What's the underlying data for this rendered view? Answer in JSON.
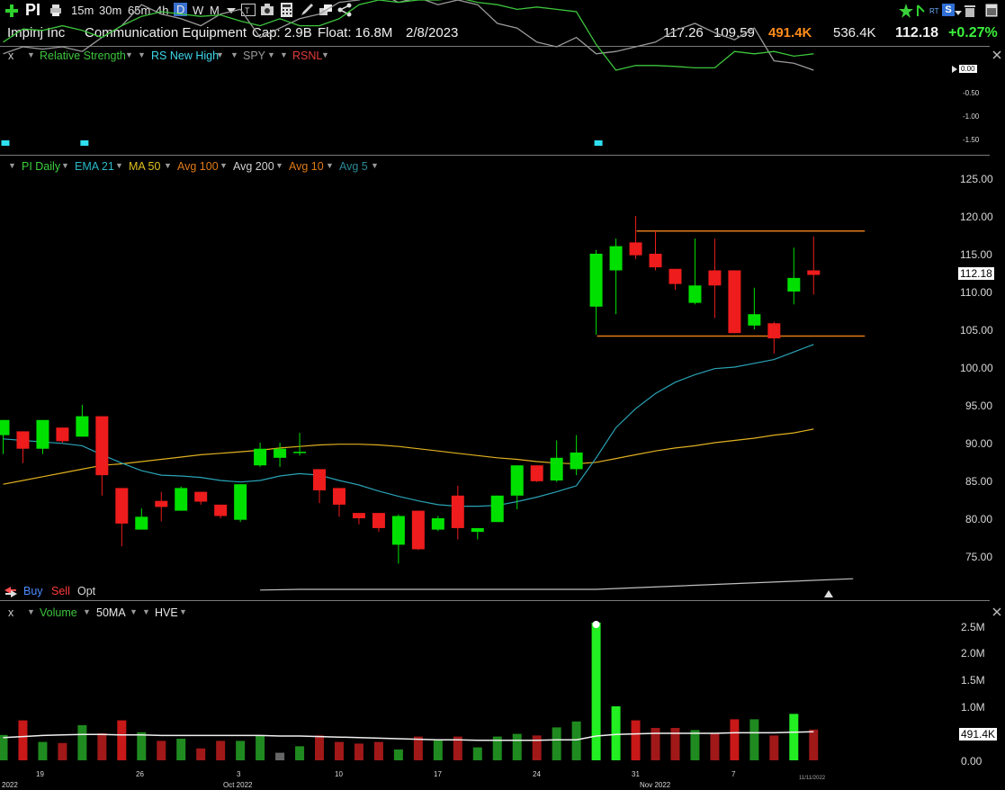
{
  "toolbar": {
    "symbol": "PI",
    "timeframes": [
      "15m",
      "30m",
      "65m",
      "4h",
      "D",
      "W",
      "M"
    ],
    "active_timeframe": "D"
  },
  "header": {
    "company": "Impinj Inc",
    "industry": "Communication Equipment",
    "cap": "Cap: 2.9B",
    "float": "Float: 16.8M",
    "date": "2/8/2023",
    "high": "117.26",
    "low": "109.59",
    "volume": "491.4K",
    "avg_volume": "536.4K",
    "last": "112.18",
    "change_pct": "+0.27%",
    "rt_badge": "RT",
    "s_badge": "S"
  },
  "rs_pane": {
    "close": "x",
    "items": [
      "Relative Strength",
      "RS New High",
      "SPY",
      "RSNL"
    ],
    "axis": [
      "0.00",
      "-0.50",
      "-1.00",
      "-1.50"
    ]
  },
  "price_pane": {
    "items": [
      "PI Daily",
      "EMA 21",
      "MA 50",
      "Avg 100",
      "Avg 200",
      "Avg 10",
      "Avg 5"
    ],
    "axis": [
      "125.00",
      "120.00",
      "115.00",
      "110.00",
      "105.00",
      "100.00",
      "95.00",
      "90.00",
      "85.00",
      "80.00",
      "75.00"
    ],
    "last_tag": "112.18",
    "buy": "Buy",
    "sell": "Sell",
    "opt": "Opt"
  },
  "volume_pane": {
    "close": "x",
    "items": [
      "Volume",
      "50MA",
      "HVE"
    ],
    "axis": [
      "2.5M",
      "2.0M",
      "1.5M",
      "1.0M",
      "0.00"
    ],
    "last_tag": "491.4K"
  },
  "dates": {
    "days": [
      "19",
      "26",
      "3",
      "10",
      "17",
      "24",
      "31",
      "7"
    ],
    "months": [
      "2022",
      "Oct 2022",
      "Nov 2022"
    ],
    "cursor_date": "11/11/2022"
  },
  "colors": {
    "up": "#00e000",
    "down": "#ee1c1c",
    "ema21": "#2aa3b6",
    "ma50": "#e0b020",
    "avg200": "#bfbfbf",
    "rs": "#3cc43c",
    "spy": "#9a9a9a",
    "orange_hl": "#e07a18",
    "change": "#3cf03c",
    "volume_hl": "#ff8c1a"
  },
  "chart_data": {
    "type": "candlestick",
    "ylim": [
      70,
      125
    ],
    "candles": [
      {
        "o": 91.0,
        "h": 93.0,
        "l": 88.5,
        "c": 93.0
      },
      {
        "o": 91.5,
        "h": 91.5,
        "l": 87.3,
        "c": 89.2
      },
      {
        "o": 89.2,
        "h": 93.0,
        "l": 88.5,
        "c": 93.0
      },
      {
        "o": 92.0,
        "h": 92.0,
        "l": 90.0,
        "c": 90.2
      },
      {
        "o": 90.8,
        "h": 95.0,
        "l": 90.8,
        "c": 93.5
      },
      {
        "o": 93.5,
        "h": 93.5,
        "l": 83.0,
        "c": 85.7
      },
      {
        "o": 84.0,
        "h": 84.0,
        "l": 76.3,
        "c": 79.3
      },
      {
        "o": 78.5,
        "h": 81.3,
        "l": 78.5,
        "c": 80.2
      },
      {
        "o": 82.3,
        "h": 83.5,
        "l": 79.6,
        "c": 81.5
      },
      {
        "o": 81.0,
        "h": 84.2,
        "l": 81.0,
        "c": 84.0
      },
      {
        "o": 83.5,
        "h": 83.5,
        "l": 81.8,
        "c": 82.2
      },
      {
        "o": 81.8,
        "h": 81.8,
        "l": 80.0,
        "c": 80.3
      },
      {
        "o": 79.8,
        "h": 84.5,
        "l": 79.5,
        "c": 84.5
      },
      {
        "o": 87.0,
        "h": 90.0,
        "l": 86.8,
        "c": 89.2
      },
      {
        "o": 88.0,
        "h": 90.0,
        "l": 86.8,
        "c": 89.2
      },
      {
        "o": 88.8,
        "h": 91.3,
        "l": 88.3,
        "c": 88.8
      },
      {
        "o": 86.5,
        "h": 86.5,
        "l": 82.0,
        "c": 83.7
      },
      {
        "o": 84.0,
        "h": 84.0,
        "l": 80.2,
        "c": 81.8
      },
      {
        "o": 80.7,
        "h": 80.7,
        "l": 79.2,
        "c": 80.0
      },
      {
        "o": 80.7,
        "h": 80.7,
        "l": 78.2,
        "c": 78.7
      },
      {
        "o": 76.5,
        "h": 80.5,
        "l": 74.0,
        "c": 80.3
      },
      {
        "o": 81.0,
        "h": 81.0,
        "l": 75.8,
        "c": 75.9
      },
      {
        "o": 78.5,
        "h": 80.3,
        "l": 78.3,
        "c": 80.0
      },
      {
        "o": 83.0,
        "h": 84.3,
        "l": 77.2,
        "c": 78.7
      },
      {
        "o": 78.2,
        "h": 78.7,
        "l": 77.2,
        "c": 78.7
      },
      {
        "o": 79.5,
        "h": 83.0,
        "l": 79.5,
        "c": 83.0
      },
      {
        "o": 83.0,
        "h": 87.0,
        "l": 81.2,
        "c": 87.0
      },
      {
        "o": 87.0,
        "h": 87.0,
        "l": 84.8,
        "c": 84.9
      },
      {
        "o": 85.0,
        "h": 90.3,
        "l": 84.8,
        "c": 88.0
      },
      {
        "o": 86.5,
        "h": 91.0,
        "l": 85.7,
        "c": 88.7
      },
      {
        "o": 108.0,
        "h": 115.5,
        "l": 104.3,
        "c": 115.0
      },
      {
        "o": 112.8,
        "h": 117.0,
        "l": 107.0,
        "c": 116.0
      },
      {
        "o": 116.5,
        "h": 120.0,
        "l": 114.3,
        "c": 114.8
      },
      {
        "o": 115.0,
        "h": 118.0,
        "l": 112.8,
        "c": 113.2
      },
      {
        "o": 113.0,
        "h": 113.0,
        "l": 110.2,
        "c": 111.0
      },
      {
        "o": 108.5,
        "h": 117.0,
        "l": 108.3,
        "c": 110.8
      },
      {
        "o": 112.8,
        "h": 117.0,
        "l": 106.5,
        "c": 110.8
      },
      {
        "o": 112.8,
        "h": 112.8,
        "l": 104.5,
        "c": 104.5
      },
      {
        "o": 105.5,
        "h": 110.5,
        "l": 105.0,
        "c": 107.0
      },
      {
        "o": 105.8,
        "h": 106.0,
        "l": 101.8,
        "c": 103.8
      },
      {
        "o": 110.0,
        "h": 115.8,
        "l": 108.3,
        "c": 111.8
      },
      {
        "o": 112.8,
        "h": 117.3,
        "l": 109.6,
        "c": 112.2
      }
    ],
    "ema21": [
      90.5,
      90.3,
      90.1,
      89.9,
      89.6,
      88.4,
      87.3,
      86.3,
      85.7,
      85.6,
      85.4,
      85.0,
      84.8,
      85.0,
      85.6,
      85.9,
      85.7,
      85.0,
      84.4,
      83.6,
      82.9,
      82.3,
      81.8,
      81.6,
      81.6,
      81.7,
      82.2,
      82.8,
      83.5,
      84.3,
      88.0,
      92.0,
      94.5,
      96.5,
      98.0,
      99.0,
      99.8,
      100.0,
      100.5,
      101.0,
      102.0,
      103.0
    ],
    "ma50": [
      84.5,
      85.0,
      85.5,
      86.0,
      86.5,
      87.0,
      87.2,
      87.5,
      87.8,
      88.1,
      88.4,
      88.6,
      88.8,
      89.0,
      89.3,
      89.5,
      89.7,
      89.8,
      89.8,
      89.7,
      89.5,
      89.2,
      88.9,
      88.6,
      88.3,
      88.0,
      87.8,
      87.5,
      87.3,
      87.2,
      87.4,
      87.9,
      88.4,
      88.9,
      89.3,
      89.6,
      90.0,
      90.3,
      90.6,
      91.0,
      91.3,
      91.8
    ],
    "avg200_points": [
      [
        13,
        70.5
      ],
      [
        15,
        70.6
      ],
      [
        30,
        70.6
      ],
      [
        43,
        72.0
      ]
    ],
    "hlines": [
      {
        "y": 118.0,
        "from": 32,
        "to": 43
      },
      {
        "y": 104.1,
        "from": 30,
        "to": 43
      }
    ],
    "volume": {
      "unit": "shares",
      "values": [
        0.47,
        0.74,
        0.34,
        0.32,
        0.65,
        0.5,
        0.74,
        0.52,
        0.36,
        0.4,
        0.22,
        0.36,
        0.36,
        0.46,
        0.14,
        0.26,
        0.46,
        0.34,
        0.31,
        0.34,
        0.2,
        0.44,
        0.39,
        0.44,
        0.24,
        0.44,
        0.49,
        0.46,
        0.61,
        0.72,
        2.55,
        1.0,
        0.74,
        0.6,
        0.6,
        0.56,
        0.5,
        0.76,
        0.76,
        0.46,
        0.86,
        0.57
      ],
      "up_flags": [
        1,
        0,
        1,
        0,
        1,
        0,
        0,
        1,
        0,
        1,
        0,
        0,
        1,
        1,
        1,
        1,
        0,
        0,
        0,
        0,
        1,
        0,
        1,
        0,
        1,
        1,
        1,
        0,
        1,
        1,
        1,
        1,
        0,
        0,
        0,
        1,
        0,
        0,
        1,
        0,
        1,
        0
      ],
      "ma50": [
        0.42,
        0.44,
        0.46,
        0.47,
        0.48,
        0.48,
        0.47,
        0.47,
        0.46,
        0.46,
        0.46,
        0.46,
        0.46,
        0.46,
        0.45,
        0.45,
        0.44,
        0.43,
        0.42,
        0.41,
        0.4,
        0.39,
        0.38,
        0.38,
        0.37,
        0.37,
        0.37,
        0.37,
        0.38,
        0.38,
        0.45,
        0.48,
        0.49,
        0.5,
        0.5,
        0.5,
        0.5,
        0.51,
        0.51,
        0.51,
        0.52,
        0.53
      ],
      "ylim": [
        0,
        2.75
      ]
    },
    "rs": {
      "ylim": [
        -1.65,
        0.05
      ],
      "rs_line": [
        -0.6,
        -0.88,
        -0.85,
        -0.95,
        -0.85,
        -0.7,
        -0.95,
        -1.15,
        -1.25,
        -1.2,
        -1.15,
        -1.18,
        -1.05,
        -0.95,
        -1.1,
        -0.95,
        -0.95,
        -1.1,
        -1.4,
        -1.5,
        -1.45,
        -1.5,
        -1.5,
        -1.55,
        -1.45,
        -1.4,
        -1.3,
        -1.35,
        -1.3,
        -1.25,
        -0.55,
        0.0,
        -0.1,
        -0.1,
        -0.08,
        -0.05,
        -0.05,
        -0.4,
        -0.35,
        -0.4,
        -0.3,
        -0.35
      ],
      "spy_line": [
        -0.35,
        -0.5,
        -0.45,
        -0.5,
        -0.4,
        -0.7,
        -0.95,
        -1.4,
        -1.2,
        -1.1,
        -0.95,
        -1.2,
        -1.3,
        -0.7,
        -0.9,
        -1.1,
        -1.2,
        -1.45,
        -1.5,
        -1.65,
        -1.45,
        -1.55,
        -1.4,
        -1.5,
        -1.4,
        -1.0,
        -0.9,
        -0.6,
        -0.5,
        -0.7,
        -0.35,
        -0.4,
        -0.5,
        -0.6,
        -0.85,
        -1.0,
        -0.8,
        -0.65,
        -0.9,
        -0.2,
        -0.15,
        0.0
      ],
      "marks": [
        0,
        4,
        30
      ]
    }
  }
}
